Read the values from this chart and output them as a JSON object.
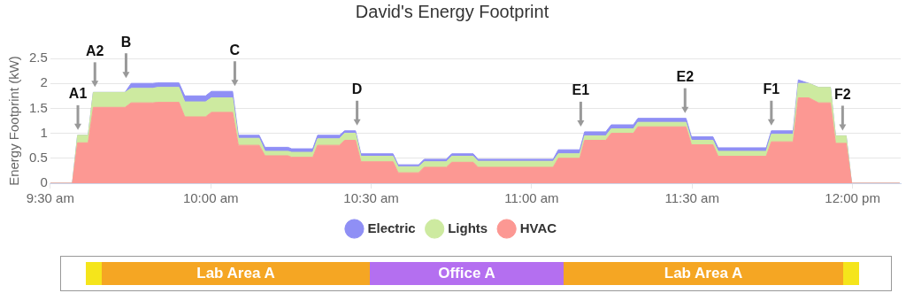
{
  "chart_data": [
    {
      "type": "area",
      "title": "David's Energy Footprint",
      "ylabel": "Energy Footprint (kW)",
      "stacked": true,
      "grid": "y",
      "legend": "bottom",
      "marker": "none",
      "x": [
        9.5,
        9.569,
        9.585,
        9.618,
        9.634,
        9.733,
        9.752,
        9.819,
        9.833,
        9.901,
        9.919,
        9.984,
        10.002,
        10.068,
        10.086,
        10.151,
        10.169,
        10.241,
        10.252,
        10.318,
        10.333,
        10.401,
        10.417,
        10.451,
        10.468,
        10.568,
        10.584,
        10.648,
        10.665,
        10.734,
        10.751,
        10.818,
        10.833,
        11.067,
        11.083,
        11.15,
        11.165,
        11.231,
        11.248,
        11.317,
        11.331,
        11.481,
        11.498,
        11.565,
        11.581,
        11.731,
        11.747,
        11.815,
        11.831,
        11.864,
        11.894,
        11.931,
        11.947,
        11.98,
        11.997,
        12.147
      ],
      "series": [
        {
          "name": "HVAC",
          "color": "#fc9893",
          "values": [
            0,
            0,
            0.81,
            0.81,
            1.52,
            1.52,
            1.61,
            1.61,
            1.62,
            1.62,
            1.33,
            1.33,
            1.42,
            1.42,
            0.76,
            0.76,
            0.55,
            0.55,
            0.52,
            0.52,
            0.76,
            0.76,
            0.86,
            0.86,
            0.43,
            0.43,
            0.21,
            0.21,
            0.32,
            0.32,
            0.42,
            0.42,
            0.32,
            0.32,
            0.5,
            0.5,
            0.86,
            0.86,
            1.0,
            1.0,
            1.13,
            1.13,
            0.77,
            0.77,
            0.54,
            0.54,
            0.83,
            0.83,
            1.71,
            1.71,
            1.61,
            1.61,
            0.8,
            0.8,
            0,
            0
          ]
        },
        {
          "name": "Lights",
          "color": "#cdeaa0",
          "values": [
            0,
            0,
            0.15,
            0.15,
            0.3,
            0.3,
            0.29,
            0.29,
            0.3,
            0.3,
            0.3,
            0.3,
            0.29,
            0.29,
            0.14,
            0.14,
            0.09,
            0.09,
            0.1,
            0.1,
            0.13,
            0.13,
            0.14,
            0.14,
            0.11,
            0.11,
            0.12,
            0.12,
            0.11,
            0.11,
            0.12,
            0.12,
            0.12,
            0.12,
            0.09,
            0.09,
            0.09,
            0.09,
            0.09,
            0.09,
            0.09,
            0.09,
            0.09,
            0.09,
            0.1,
            0.1,
            0.15,
            0.15,
            0.29,
            0.29,
            0.31,
            0.31,
            0.15,
            0.15,
            0,
            0
          ]
        },
        {
          "name": "Electric",
          "color": "#8f8ff5",
          "values": [
            0,
            0,
            0,
            0,
            0,
            0,
            0.1,
            0.1,
            0.09,
            0.09,
            0.12,
            0.12,
            0.13,
            0.13,
            0.06,
            0.06,
            0.08,
            0.08,
            0.07,
            0.07,
            0.07,
            0.07,
            0.05,
            0.05,
            0.05,
            0.05,
            0.04,
            0.04,
            0.05,
            0.05,
            0.05,
            0.05,
            0.04,
            0.04,
            0.08,
            0.08,
            0.08,
            0.08,
            0.08,
            0.08,
            0.08,
            0.08,
            0.07,
            0.07,
            0.07,
            0.07,
            0.07,
            0.07,
            0.07,
            0,
            0,
            0,
            0,
            0,
            0,
            0
          ]
        }
      ],
      "xlim": [
        9.5,
        12.15
      ],
      "xticks": [
        {
          "value": 9.5,
          "label": "9:30 am"
        },
        {
          "value": 10,
          "label": "10:00 am"
        },
        {
          "value": 10.5,
          "label": "10:30 am"
        },
        {
          "value": 11,
          "label": "11:00 am"
        },
        {
          "value": 11.5,
          "label": "11:30 am"
        },
        {
          "value": 12,
          "label": "12:00 pm"
        }
      ],
      "ylim": [
        0,
        2.5
      ],
      "yticks": [
        0,
        0.5,
        1,
        1.5,
        2,
        2.5
      ],
      "annotations": [
        {
          "text": "A1",
          "x": 9.586,
          "y": 0.96
        },
        {
          "text": "A2",
          "x": 9.639,
          "y": 1.82
        },
        {
          "text": "B",
          "x": 9.736,
          "y": 2.0
        },
        {
          "text": "C",
          "x": 10.075,
          "y": 1.84
        },
        {
          "text": "D",
          "x": 10.456,
          "y": 1.05
        },
        {
          "text": "E1",
          "x": 11.153,
          "y": 1.03
        },
        {
          "text": "E2",
          "x": 11.478,
          "y": 1.3
        },
        {
          "text": "F1",
          "x": 11.747,
          "y": 1.05
        },
        {
          "text": "F2",
          "x": 11.969,
          "y": 0.95
        }
      ]
    },
    {
      "type": "other",
      "categories": [
        null,
        "Lab Area A",
        "Office A",
        "Lab Area A",
        null
      ],
      "colors": [
        "#f5e51b",
        "#f5a623",
        "#b46ff0",
        "#f5a623",
        "#f5e51b"
      ]
    }
  ]
}
